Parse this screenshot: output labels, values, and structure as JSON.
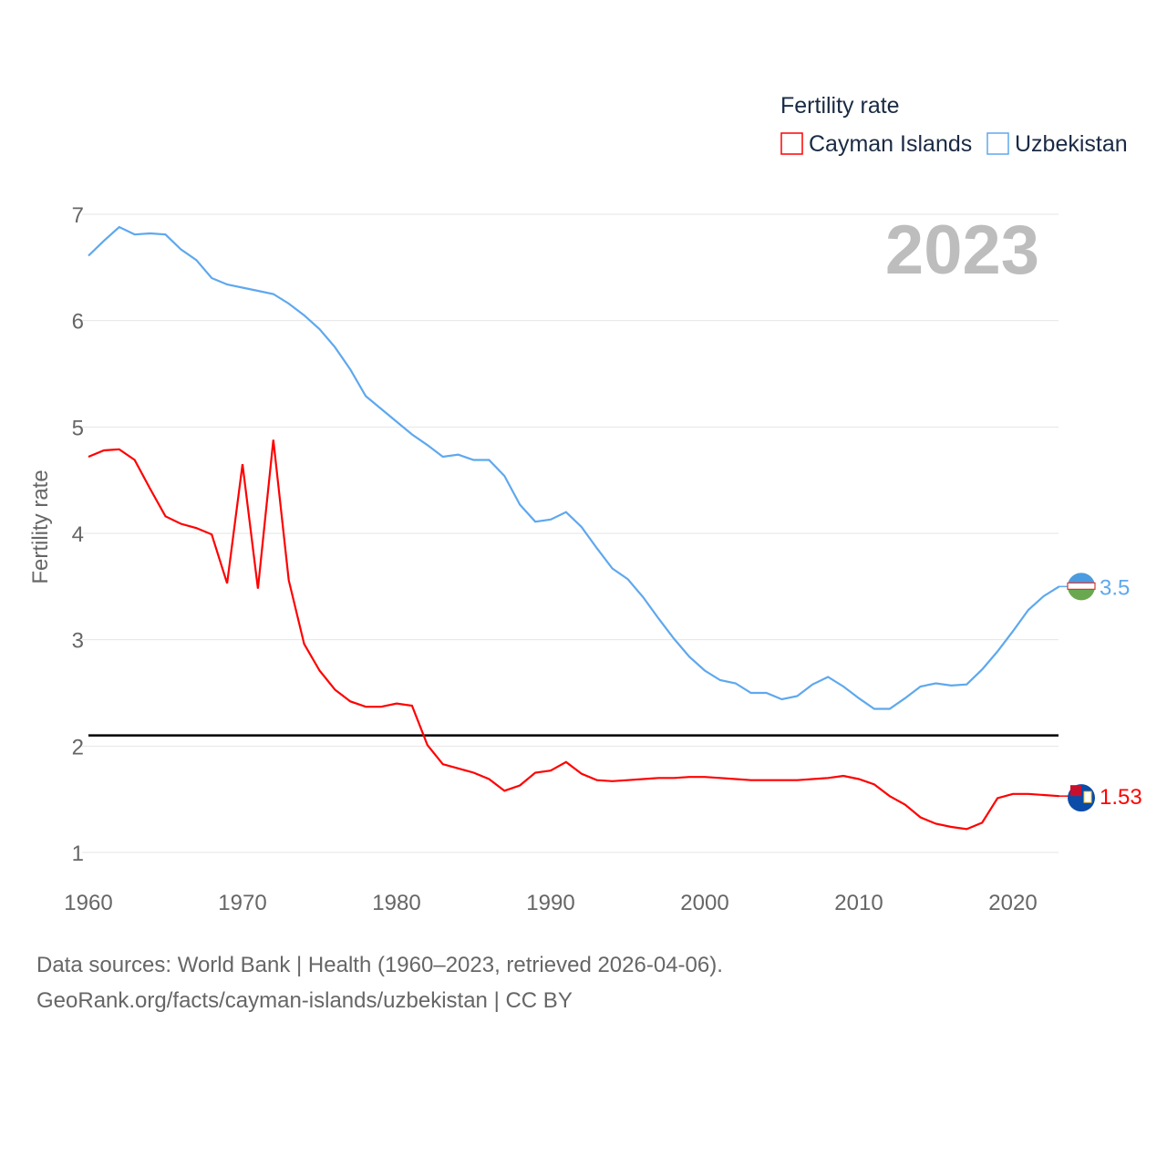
{
  "chart_data": {
    "type": "line",
    "title": "",
    "legend_title": "Fertility rate",
    "legend_placement": "top-right",
    "ylabel": "Fertility rate",
    "xlabel": "",
    "year_label": "2023",
    "xlim": [
      1960,
      2023
    ],
    "ylim": [
      0.8,
      7.1
    ],
    "xticks": [
      1960,
      1970,
      1980,
      1990,
      2000,
      2010,
      2020
    ],
    "yticks": [
      1,
      2,
      3,
      4,
      5,
      6,
      7
    ],
    "reference_line": 2.1,
    "grid": true,
    "x_start": 1960,
    "series": [
      {
        "name": "Cayman Islands",
        "color": "#ff0000",
        "end_label": "1.53",
        "flag": "cayman-islands",
        "values": [
          4.72,
          4.78,
          4.79,
          4.69,
          4.42,
          4.16,
          4.09,
          4.05,
          3.99,
          3.53,
          4.65,
          3.48,
          4.88,
          3.56,
          2.96,
          2.71,
          2.53,
          2.42,
          2.37,
          2.37,
          2.4,
          2.38,
          2.01,
          1.83,
          1.79,
          1.75,
          1.69,
          1.58,
          1.63,
          1.75,
          1.77,
          1.85,
          1.74,
          1.68,
          1.67,
          1.68,
          1.69,
          1.7,
          1.7,
          1.71,
          1.71,
          1.7,
          1.69,
          1.68,
          1.68,
          1.68,
          1.68,
          1.69,
          1.7,
          1.72,
          1.69,
          1.64,
          1.53,
          1.45,
          1.33,
          1.27,
          1.24,
          1.22,
          1.28,
          1.51,
          1.55,
          1.55,
          1.54,
          1.53
        ]
      },
      {
        "name": "Uzbekistan",
        "color": "#5ea8ee",
        "end_label": "3.5",
        "flag": "uzbekistan",
        "values": [
          6.61,
          6.75,
          6.88,
          6.81,
          6.82,
          6.81,
          6.67,
          6.57,
          6.4,
          6.34,
          6.31,
          6.28,
          6.25,
          6.16,
          6.05,
          5.92,
          5.75,
          5.54,
          5.29,
          5.17,
          5.05,
          4.93,
          4.83,
          4.72,
          4.74,
          4.69,
          4.69,
          4.54,
          4.27,
          4.11,
          4.13,
          4.2,
          4.06,
          3.86,
          3.67,
          3.57,
          3.4,
          3.2,
          3.01,
          2.84,
          2.71,
          2.62,
          2.59,
          2.5,
          2.5,
          2.44,
          2.47,
          2.58,
          2.65,
          2.56,
          2.45,
          2.35,
          2.35,
          2.45,
          2.56,
          2.59,
          2.57,
          2.58,
          2.72,
          2.89,
          3.08,
          3.28,
          3.41,
          3.5
        ]
      }
    ]
  },
  "footer": {
    "line1": "Data sources: World Bank | Health (1960–2023, retrieved 2026-04-06).",
    "line2": "GeoRank.org/facts/cayman-islands/uzbekistan | CC BY"
  }
}
